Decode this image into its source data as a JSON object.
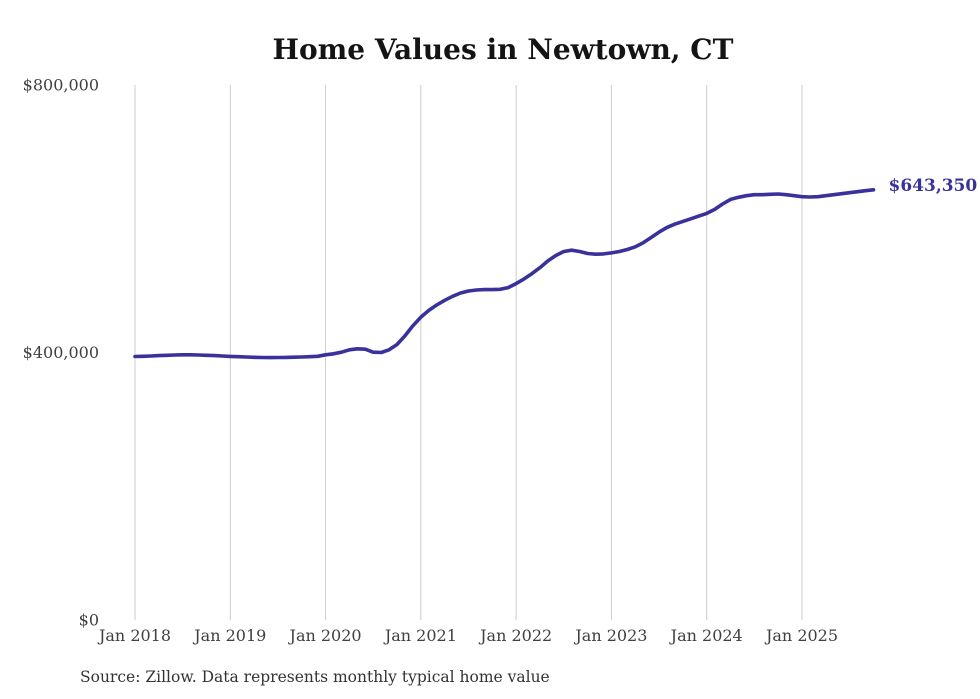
{
  "title": "Home Values in Newtown, CT",
  "source_note": "Source: Zillow. Data represents monthly typical home value",
  "colors": {
    "line": "#39329b",
    "grid": "#cccccc",
    "axis_text": "#404040",
    "title_text": "#141414",
    "note_text": "#333333",
    "background": "#ffffff"
  },
  "chart_data": {
    "type": "line",
    "title": "Home Values in Newtown, CT",
    "xlabel": "",
    "ylabel": "",
    "ylim": [
      0,
      800000
    ],
    "grid": "vertical-only",
    "legend": "none",
    "x_monthly_start": "2018-01",
    "x_monthly_end": "2025-10",
    "x_tick_labels": [
      "Jan 2018",
      "Jan 2019",
      "Jan 2020",
      "Jan 2021",
      "Jan 2022",
      "Jan 2023",
      "Jan 2024",
      "Jan 2025"
    ],
    "y_ticks": [
      {
        "value": 0,
        "label": "$0"
      },
      {
        "value": 400000,
        "label": "$400,000"
      },
      {
        "value": 800000,
        "label": "$800,000"
      }
    ],
    "last_value": 643350,
    "last_value_label": "$643,350",
    "series": [
      {
        "name": "Typical home value",
        "unit": "USD",
        "values": [
          394000,
          394300,
          394800,
          395300,
          395800,
          396300,
          396600,
          396600,
          396300,
          395800,
          395300,
          394800,
          394200,
          393700,
          393200,
          392800,
          392500,
          392400,
          392500,
          392700,
          393000,
          393300,
          393700,
          394300,
          396500,
          398000,
          400500,
          404000,
          405500,
          405000,
          400500,
          400000,
          404000,
          412000,
          425000,
          440000,
          453000,
          463000,
          471000,
          478000,
          484000,
          489000,
          492000,
          493500,
          494000,
          494000,
          494500,
          497000,
          503000,
          510000,
          518000,
          527000,
          537000,
          545000,
          551000,
          553000,
          551000,
          548000,
          547000,
          547500,
          549000,
          551000,
          554000,
          558000,
          564000,
          572000,
          580000,
          587000,
          592000,
          596000,
          600000,
          604000,
          608000,
          614000,
          622000,
          629000,
          632000,
          634500,
          636000,
          636000,
          636500,
          637000,
          636000,
          634500,
          633000,
          632500,
          633000,
          634500,
          636000,
          637500,
          639000,
          640500,
          642000,
          643350
        ]
      }
    ]
  }
}
